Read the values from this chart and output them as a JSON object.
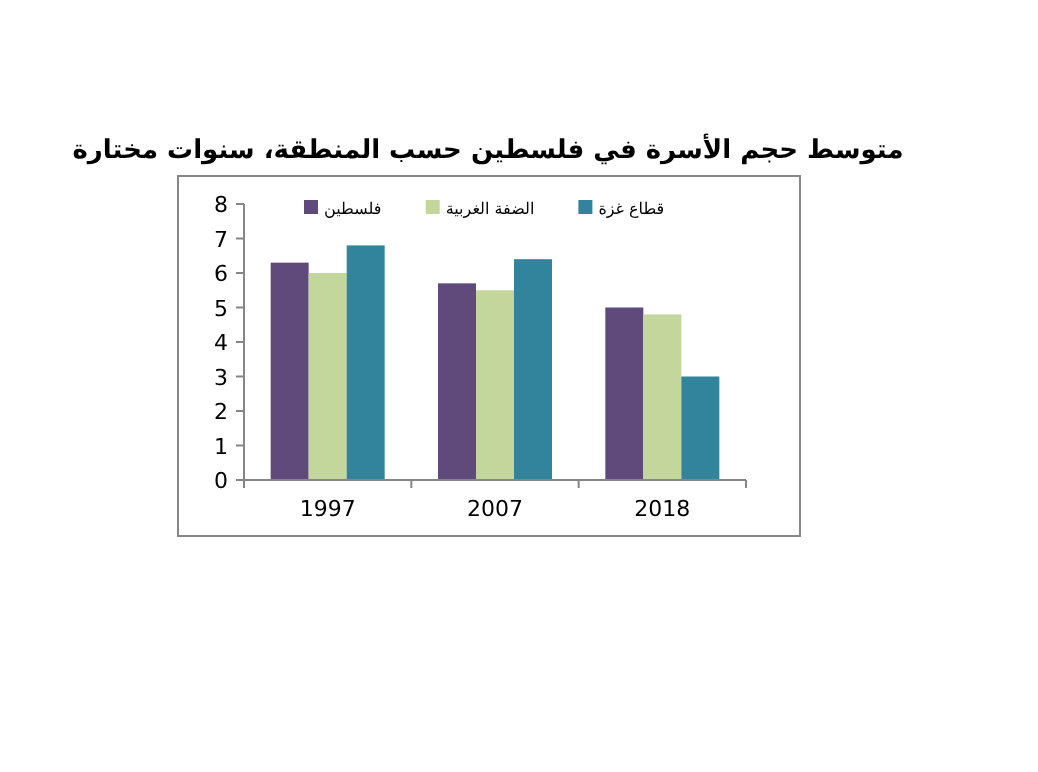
{
  "chart_data": {
    "type": "bar",
    "title": "متوسط حجم الأسرة في فلسطين حسب المنطقة، سنوات مختارة",
    "categories": [
      "1997",
      "2007",
      "2018"
    ],
    "series": [
      {
        "name": "فلسطين",
        "color": "#604a7b",
        "values": [
          6.3,
          5.7,
          5.0
        ]
      },
      {
        "name": "الضفة الغربية",
        "color": "#c3d69b",
        "values": [
          6.0,
          5.5,
          4.8
        ]
      },
      {
        "name": "قطاع غزة",
        "color": "#31849b",
        "values": [
          6.8,
          6.4,
          3.0
        ]
      }
    ],
    "ylim": [
      0,
      8
    ],
    "yticks": [
      0,
      1,
      2,
      3,
      4,
      5,
      6,
      7,
      8
    ],
    "grid": false,
    "legend": "top"
  }
}
